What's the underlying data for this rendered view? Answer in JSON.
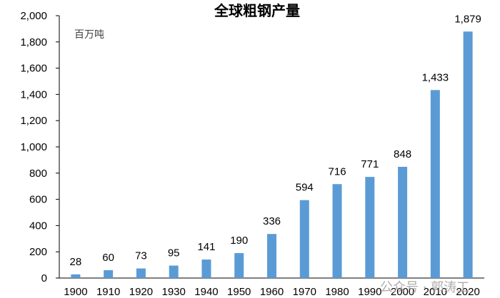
{
  "chart_data": {
    "type": "bar",
    "title": "全球粗钢产量",
    "unit_label": "百万吨",
    "xlabel": "",
    "ylabel": "",
    "categories": [
      "1900",
      "1910",
      "1920",
      "1930",
      "1940",
      "1950",
      "1960",
      "1970",
      "1980",
      "1990",
      "2000",
      "2010",
      "2020"
    ],
    "values": [
      28,
      60,
      73,
      95,
      141,
      190,
      336,
      594,
      716,
      771,
      848,
      1433,
      1879
    ],
    "data_labels": [
      "28",
      "60",
      "73",
      "95",
      "141",
      "190",
      "336",
      "594",
      "716",
      "771",
      "848",
      "1,433",
      "1,879"
    ],
    "ylim": [
      0,
      2000
    ],
    "yticks": [
      0,
      200,
      400,
      600,
      800,
      1000,
      1200,
      1400,
      1600,
      1800,
      2000
    ],
    "ytick_labels": [
      "0",
      "200",
      "400",
      "600",
      "800",
      "1,000",
      "1,200",
      "1,400",
      "1,600",
      "1,800",
      "2,000"
    ],
    "grid": false,
    "legend": "none",
    "bar_color": "#5B9BD5",
    "watermark": "公众号 · 郭涛工"
  }
}
